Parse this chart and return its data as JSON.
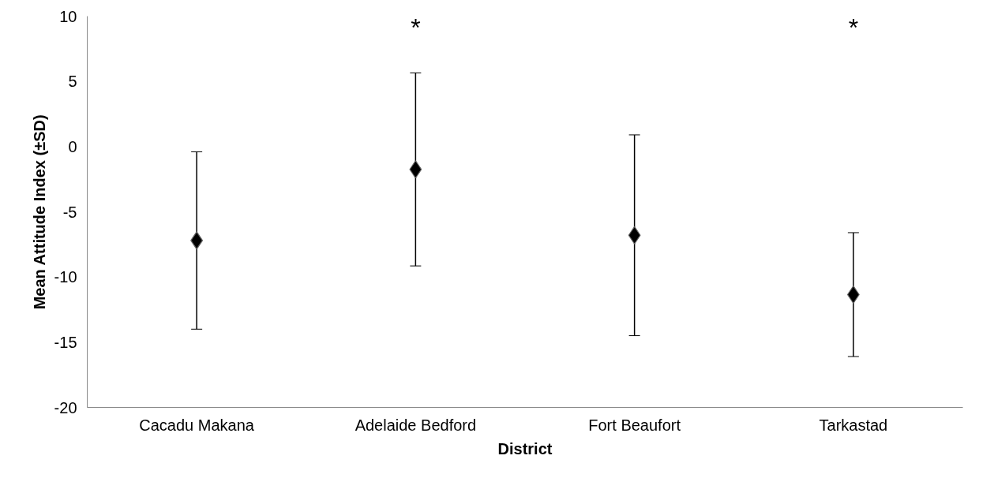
{
  "chart_data": {
    "type": "scatter",
    "xlabel": "District",
    "ylabel": "Mean Attitude Index (±SD)",
    "categories": [
      "Cacadu Makana",
      "Adelaide Bedford",
      "Fort Beaufort",
      "Tarkastad"
    ],
    "values": [
      -7.2,
      -1.75,
      -6.8,
      -11.35
    ],
    "errors": [
      6.8,
      7.4,
      7.7,
      4.75
    ],
    "color": "#000000",
    "marker": "diamond",
    "ylim": [
      -20,
      10
    ],
    "yticks": [
      -20,
      -15,
      -10,
      -5,
      0,
      5,
      10
    ],
    "grid": false,
    "legend": false,
    "annotations": [
      "*",
      "*"
    ]
  }
}
